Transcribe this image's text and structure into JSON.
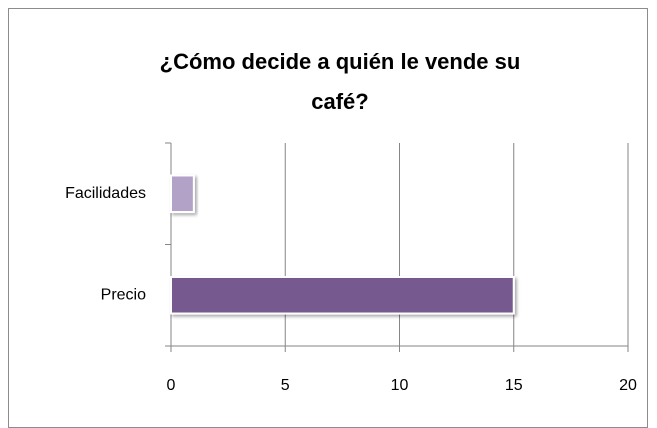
{
  "chart_data": {
    "type": "hbar",
    "title": "¿Cómo decide a quién le vende su café?",
    "categories": [
      "Facilidades",
      "Precio"
    ],
    "values": [
      1,
      15
    ],
    "colors": [
      "#b3a2c7",
      "#765a8f"
    ],
    "xlim": [
      0,
      20
    ],
    "xticks": [
      0,
      5,
      10,
      15,
      20
    ],
    "grid": true
  }
}
